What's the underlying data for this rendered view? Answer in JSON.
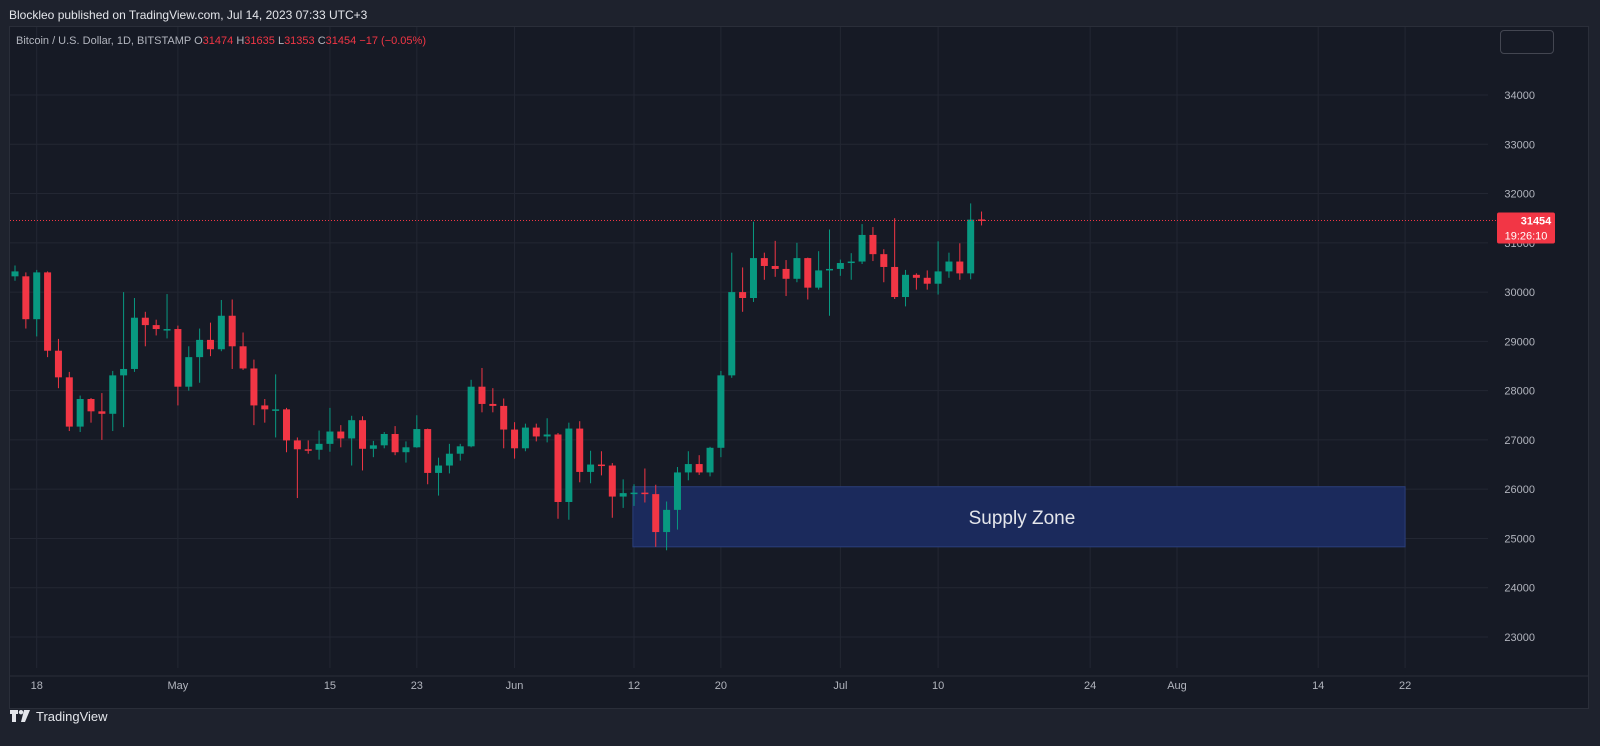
{
  "header": {
    "publisher_line": "Blockleo published on TradingView.com, Jul 14, 2023 07:33 UTC+3"
  },
  "legend": {
    "symbol": "Bitcoin / U.S. Dollar, 1D, BITSTAMP",
    "o_label": "O",
    "o_value": "31474",
    "h_label": "H",
    "h_value": "31635",
    "l_label": "L",
    "l_value": "31353",
    "c_label": "C",
    "c_value": "31454",
    "change": "−17 (−0.05%)"
  },
  "footer": {
    "brand": "TradingView",
    "logo_icon": "tradingview-logo-icon"
  },
  "colors": {
    "up": "#089981",
    "down": "#f23645",
    "zone_fill": "#1b2a5c",
    "price_line": "#f23645"
  },
  "chart_data": {
    "type": "candlestick",
    "y_ticks": [
      "34000",
      "33000",
      "32000",
      "31000",
      "30000",
      "29000",
      "28000",
      "27000",
      "26000",
      "25000",
      "24000",
      "23000"
    ],
    "x_ticks": [
      "18",
      "May",
      "15",
      "23",
      "Jun",
      "12",
      "20",
      "Jul",
      "10",
      "24",
      "Aug",
      "14",
      "22"
    ],
    "last_price_label": "31454",
    "countdown_label": "19:26:10",
    "last_price": 31454,
    "annotation": {
      "text": "Supply Zone",
      "price_top": 26050,
      "price_bottom": 24830,
      "start_date": "Jun 13",
      "end_date": "Aug 22"
    },
    "candles": [
      {
        "date": "Apr 16",
        "o": 30320,
        "h": 30540,
        "l": 30230,
        "c": 30420
      },
      {
        "date": "Apr 17",
        "o": 30320,
        "h": 30400,
        "l": 29260,
        "c": 29450
      },
      {
        "date": "Apr 18",
        "o": 29450,
        "h": 30450,
        "l": 29100,
        "c": 30400
      },
      {
        "date": "Apr 19",
        "o": 30400,
        "h": 30420,
        "l": 28680,
        "c": 28810
      },
      {
        "date": "Apr 20",
        "o": 28810,
        "h": 29050,
        "l": 28050,
        "c": 28270
      },
      {
        "date": "Apr 21",
        "o": 28270,
        "h": 28380,
        "l": 27180,
        "c": 27270
      },
      {
        "date": "Apr 22",
        "o": 27270,
        "h": 27900,
        "l": 27160,
        "c": 27830
      },
      {
        "date": "Apr 23",
        "o": 27830,
        "h": 27850,
        "l": 27350,
        "c": 27580
      },
      {
        "date": "Apr 24",
        "o": 27580,
        "h": 27950,
        "l": 27000,
        "c": 27530
      },
      {
        "date": "Apr 25",
        "o": 27530,
        "h": 28400,
        "l": 27180,
        "c": 28310
      },
      {
        "date": "Apr 26",
        "o": 28310,
        "h": 30000,
        "l": 27260,
        "c": 28440
      },
      {
        "date": "Apr 27",
        "o": 28440,
        "h": 29880,
        "l": 28380,
        "c": 29480
      },
      {
        "date": "Apr 28",
        "o": 29480,
        "h": 29600,
        "l": 28900,
        "c": 29330
      },
      {
        "date": "Apr 29",
        "o": 29330,
        "h": 29440,
        "l": 29120,
        "c": 29250
      },
      {
        "date": "Apr 30",
        "o": 29250,
        "h": 29960,
        "l": 29060,
        "c": 29250
      },
      {
        "date": "May 1",
        "o": 29250,
        "h": 29320,
        "l": 27700,
        "c": 28080
      },
      {
        "date": "May 2",
        "o": 28080,
        "h": 28900,
        "l": 28000,
        "c": 28680
      },
      {
        "date": "May 3",
        "o": 28680,
        "h": 29260,
        "l": 28160,
        "c": 29030
      },
      {
        "date": "May 4",
        "o": 29030,
        "h": 29380,
        "l": 28700,
        "c": 28840
      },
      {
        "date": "May 5",
        "o": 28840,
        "h": 29840,
        "l": 28800,
        "c": 29520
      },
      {
        "date": "May 6",
        "o": 29520,
        "h": 29850,
        "l": 28440,
        "c": 28900
      },
      {
        "date": "May 7",
        "o": 28900,
        "h": 29180,
        "l": 28420,
        "c": 28450
      },
      {
        "date": "May 8",
        "o": 28450,
        "h": 28630,
        "l": 27300,
        "c": 27700
      },
      {
        "date": "May 9",
        "o": 27700,
        "h": 27830,
        "l": 27350,
        "c": 27620
      },
      {
        "date": "May 10",
        "o": 27620,
        "h": 28330,
        "l": 27050,
        "c": 27620
      },
      {
        "date": "May 11",
        "o": 27620,
        "h": 27650,
        "l": 26750,
        "c": 26990
      },
      {
        "date": "May 12",
        "o": 26990,
        "h": 27050,
        "l": 25820,
        "c": 26810
      },
      {
        "date": "May 13",
        "o": 26810,
        "h": 26990,
        "l": 26720,
        "c": 26800
      },
      {
        "date": "May 14",
        "o": 26800,
        "h": 27190,
        "l": 26600,
        "c": 26920
      },
      {
        "date": "May 15",
        "o": 26920,
        "h": 27650,
        "l": 26760,
        "c": 27170
      },
      {
        "date": "May 16",
        "o": 27170,
        "h": 27300,
        "l": 26850,
        "c": 27030
      },
      {
        "date": "May 17",
        "o": 27030,
        "h": 27490,
        "l": 26480,
        "c": 27400
      },
      {
        "date": "May 18",
        "o": 27400,
        "h": 27480,
        "l": 26380,
        "c": 26820
      },
      {
        "date": "May 19",
        "o": 26820,
        "h": 26980,
        "l": 26650,
        "c": 26890
      },
      {
        "date": "May 20",
        "o": 26890,
        "h": 27160,
        "l": 26830,
        "c": 27120
      },
      {
        "date": "May 21",
        "o": 27120,
        "h": 27280,
        "l": 26690,
        "c": 26750
      },
      {
        "date": "May 22",
        "o": 26750,
        "h": 26970,
        "l": 26540,
        "c": 26850
      },
      {
        "date": "May 23",
        "o": 26850,
        "h": 27500,
        "l": 26840,
        "c": 27220
      },
      {
        "date": "May 24",
        "o": 27220,
        "h": 27230,
        "l": 26100,
        "c": 26330
      },
      {
        "date": "May 25",
        "o": 26330,
        "h": 26640,
        "l": 25870,
        "c": 26480
      },
      {
        "date": "May 26",
        "o": 26480,
        "h": 26920,
        "l": 26320,
        "c": 26720
      },
      {
        "date": "May 27",
        "o": 26720,
        "h": 26920,
        "l": 26580,
        "c": 26870
      },
      {
        "date": "May 28",
        "o": 26870,
        "h": 28220,
        "l": 26850,
        "c": 28080
      },
      {
        "date": "May 29",
        "o": 28080,
        "h": 28460,
        "l": 27560,
        "c": 27730
      },
      {
        "date": "May 30",
        "o": 27730,
        "h": 28050,
        "l": 27560,
        "c": 27690
      },
      {
        "date": "May 31",
        "o": 27690,
        "h": 27840,
        "l": 26830,
        "c": 27210
      },
      {
        "date": "Jun 1",
        "o": 27210,
        "h": 27360,
        "l": 26620,
        "c": 26830
      },
      {
        "date": "Jun 2",
        "o": 26830,
        "h": 27330,
        "l": 26770,
        "c": 27250
      },
      {
        "date": "Jun 3",
        "o": 27250,
        "h": 27330,
        "l": 26970,
        "c": 27070
      },
      {
        "date": "Jun 4",
        "o": 27070,
        "h": 27440,
        "l": 26950,
        "c": 27110
      },
      {
        "date": "Jun 5",
        "o": 27110,
        "h": 27140,
        "l": 25400,
        "c": 25740
      },
      {
        "date": "Jun 6",
        "o": 25740,
        "h": 27350,
        "l": 25380,
        "c": 27230
      },
      {
        "date": "Jun 7",
        "o": 27230,
        "h": 27380,
        "l": 26140,
        "c": 26350
      },
      {
        "date": "Jun 8",
        "o": 26350,
        "h": 26780,
        "l": 26120,
        "c": 26500
      },
      {
        "date": "Jun 9",
        "o": 26500,
        "h": 26770,
        "l": 26280,
        "c": 26480
      },
      {
        "date": "Jun 10",
        "o": 26480,
        "h": 26530,
        "l": 25420,
        "c": 25850
      },
      {
        "date": "Jun 11",
        "o": 25850,
        "h": 26200,
        "l": 25620,
        "c": 25920
      },
      {
        "date": "Jun 12",
        "o": 25920,
        "h": 26100,
        "l": 25660,
        "c": 25930
      },
      {
        "date": "Jun 13",
        "o": 25930,
        "h": 26420,
        "l": 25730,
        "c": 25900
      },
      {
        "date": "Jun 14",
        "o": 25900,
        "h": 26090,
        "l": 24830,
        "c": 25130
      },
      {
        "date": "Jun 15",
        "o": 25130,
        "h": 25750,
        "l": 24760,
        "c": 25580
      },
      {
        "date": "Jun 16",
        "o": 25580,
        "h": 26450,
        "l": 25180,
        "c": 26340
      },
      {
        "date": "Jun 17",
        "o": 26340,
        "h": 26770,
        "l": 26180,
        "c": 26510
      },
      {
        "date": "Jun 18",
        "o": 26510,
        "h": 26690,
        "l": 26290,
        "c": 26340
      },
      {
        "date": "Jun 19",
        "o": 26340,
        "h": 26860,
        "l": 26260,
        "c": 26840
      },
      {
        "date": "Jun 20",
        "o": 26840,
        "h": 28400,
        "l": 26650,
        "c": 28310
      },
      {
        "date": "Jun 21",
        "o": 28310,
        "h": 30800,
        "l": 28260,
        "c": 30000
      },
      {
        "date": "Jun 22",
        "o": 30000,
        "h": 30500,
        "l": 29600,
        "c": 29880
      },
      {
        "date": "Jun 23",
        "o": 29880,
        "h": 31430,
        "l": 29800,
        "c": 30690
      },
      {
        "date": "Jun 24",
        "o": 30690,
        "h": 30800,
        "l": 30250,
        "c": 30530
      },
      {
        "date": "Jun 25",
        "o": 30530,
        "h": 31040,
        "l": 30310,
        "c": 30470
      },
      {
        "date": "Jun 26",
        "o": 30470,
        "h": 30650,
        "l": 29920,
        "c": 30270
      },
      {
        "date": "Jun 27",
        "o": 30270,
        "h": 31000,
        "l": 30200,
        "c": 30690
      },
      {
        "date": "Jun 28",
        "o": 30690,
        "h": 30700,
        "l": 29850,
        "c": 30090
      },
      {
        "date": "Jun 29",
        "o": 30090,
        "h": 30830,
        "l": 30050,
        "c": 30440
      },
      {
        "date": "Jun 30",
        "o": 30440,
        "h": 31270,
        "l": 29520,
        "c": 30470
      },
      {
        "date": "Jul 1",
        "o": 30470,
        "h": 30660,
        "l": 30330,
        "c": 30590
      },
      {
        "date": "Jul 2",
        "o": 30590,
        "h": 30790,
        "l": 30250,
        "c": 30620
      },
      {
        "date": "Jul 3",
        "o": 30620,
        "h": 31380,
        "l": 30570,
        "c": 31160
      },
      {
        "date": "Jul 4",
        "o": 31160,
        "h": 31320,
        "l": 30630,
        "c": 30770
      },
      {
        "date": "Jul 5",
        "o": 30770,
        "h": 30870,
        "l": 30200,
        "c": 30510
      },
      {
        "date": "Jul 6",
        "o": 30510,
        "h": 31500,
        "l": 29860,
        "c": 29900
      },
      {
        "date": "Jul 7",
        "o": 29900,
        "h": 30450,
        "l": 29710,
        "c": 30350
      },
      {
        "date": "Jul 8",
        "o": 30350,
        "h": 30380,
        "l": 30050,
        "c": 30290
      },
      {
        "date": "Jul 9",
        "o": 30290,
        "h": 30440,
        "l": 30050,
        "c": 30170
      },
      {
        "date": "Jul 10",
        "o": 30170,
        "h": 31030,
        "l": 29950,
        "c": 30420
      },
      {
        "date": "Jul 11",
        "o": 30420,
        "h": 30800,
        "l": 30290,
        "c": 30620
      },
      {
        "date": "Jul 12",
        "o": 30620,
        "h": 30990,
        "l": 30250,
        "c": 30380
      },
      {
        "date": "Jul 13",
        "o": 30380,
        "h": 31800,
        "l": 30260,
        "c": 31470
      },
      {
        "date": "Jul 14",
        "o": 31474,
        "h": 31635,
        "l": 31353,
        "c": 31454
      }
    ]
  }
}
